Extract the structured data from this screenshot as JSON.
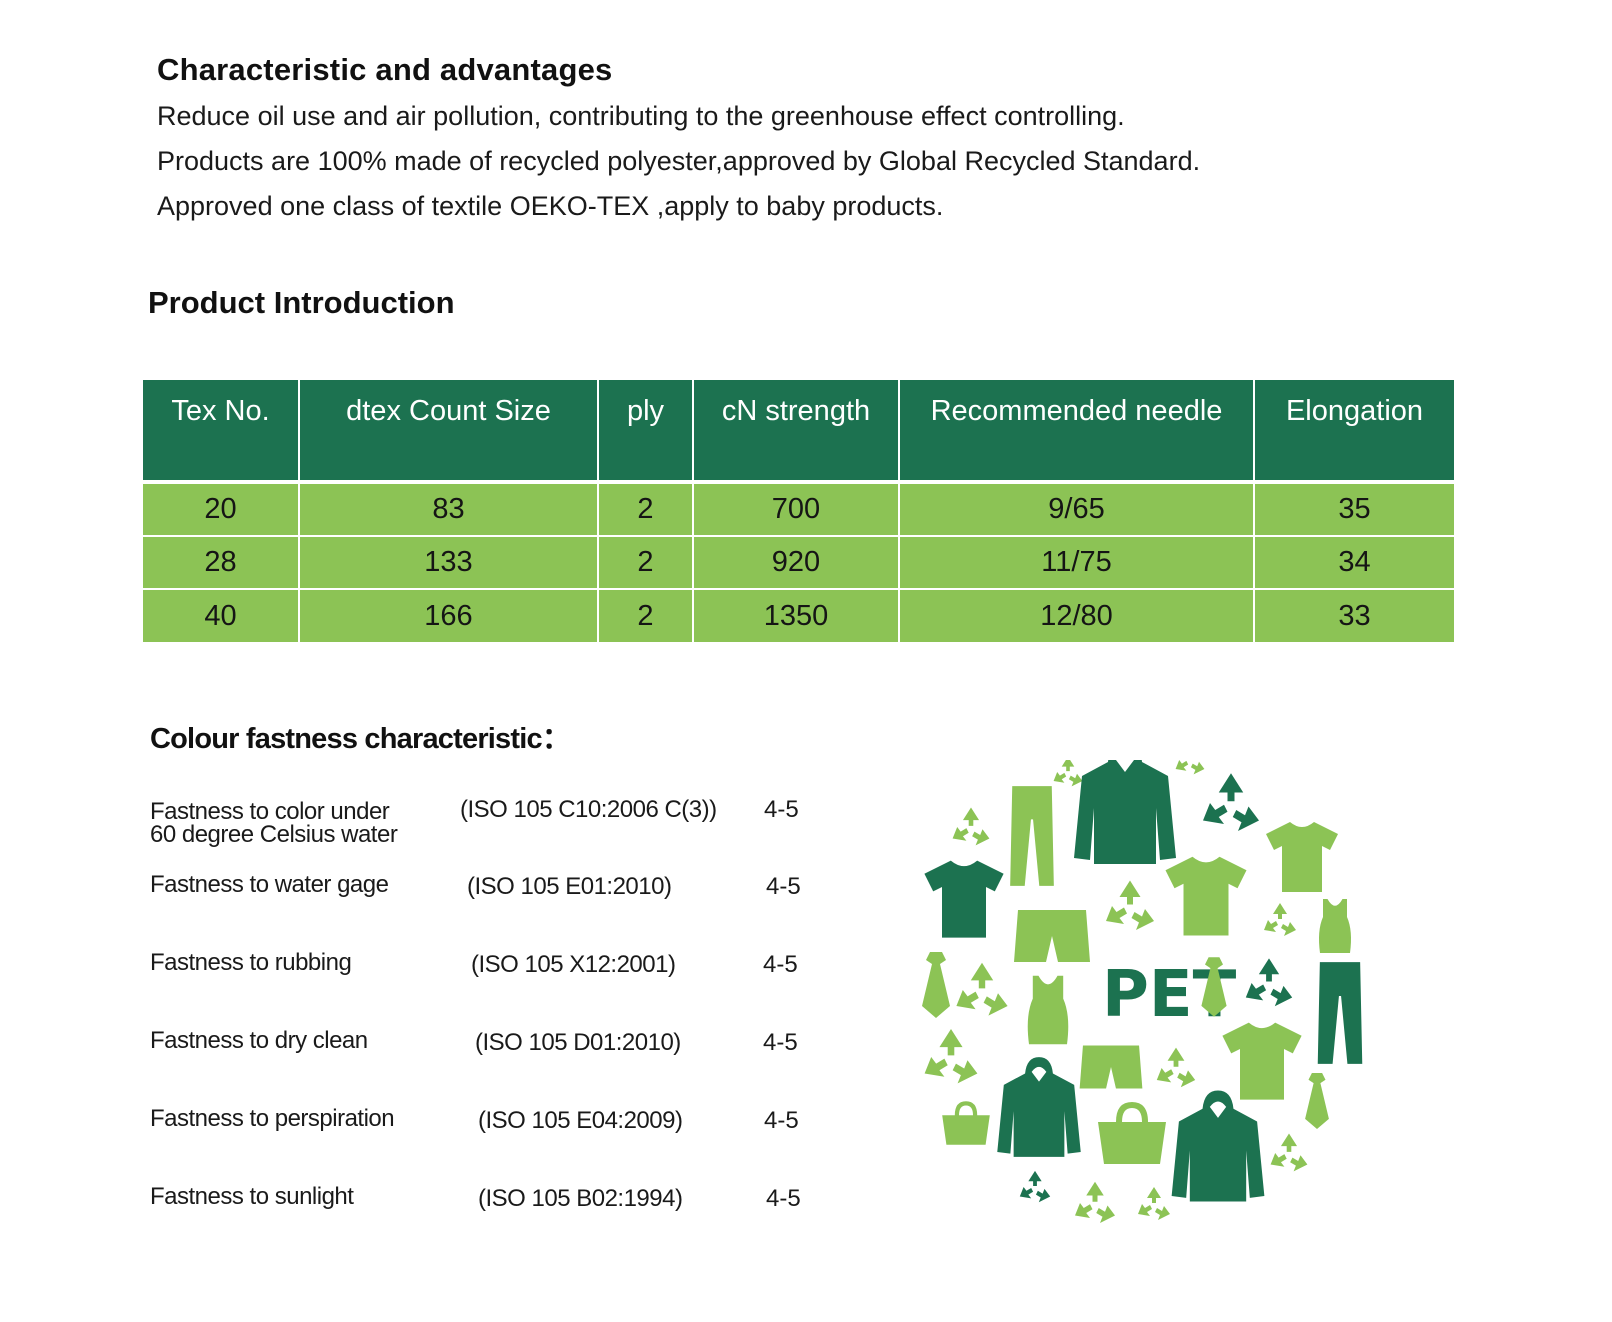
{
  "characteristics": {
    "title": "Characteristic and advantages",
    "lines": [
      "Reduce oil use and air pollution, contributing to the greenhouse effect controlling.",
      "Products are 100% made of recycled polyester,approved by Global Recycled Standard.",
      "Approved one class of textile OEKO-TEX ,apply to baby products."
    ]
  },
  "product": {
    "title": "Product Introduction",
    "columns": [
      "Tex No.",
      "dtex Count Size",
      "ply",
      "cN strength",
      "Recommended needle",
      "Elongation"
    ],
    "rows": [
      [
        "20",
        "83",
        "2",
        "700",
        "9/65",
        "35"
      ],
      [
        "28",
        "133",
        "2",
        "920",
        "11/75",
        "34"
      ],
      [
        "40",
        "166",
        "2",
        "1350",
        "12/80",
        "33"
      ]
    ]
  },
  "fastness": {
    "title": "Colour fastness characteristic：",
    "items": [
      {
        "name": [
          "Fastness to color under",
          "60 degree Celsius water"
        ],
        "standard": "(ISO 105   C10:2006 C(3))",
        "grade": "4-5"
      },
      {
        "name": [
          "Fastness to water gage"
        ],
        "standard": "(ISO 105   E01:2010)",
        "grade": "4-5"
      },
      {
        "name": [
          "Fastness to rubbing"
        ],
        "standard": "(ISO 105   X12:2001)",
        "grade": "4-5"
      },
      {
        "name": [
          "Fastness to dry clean"
        ],
        "standard": "(ISO 105   D01:2010)",
        "grade": "4-5"
      },
      {
        "name": [
          "Fastness to perspiration"
        ],
        "standard": "(ISO 105   E04:2009)",
        "grade": "4-5"
      },
      {
        "name": [
          "Fastness to sunlight"
        ],
        "standard": "(ISO 105 B02:1994)",
        "grade": "4-5"
      }
    ]
  },
  "illustration": {
    "label": "PET",
    "colors": {
      "dark": "#1c7250",
      "light": "#8cc355"
    }
  }
}
